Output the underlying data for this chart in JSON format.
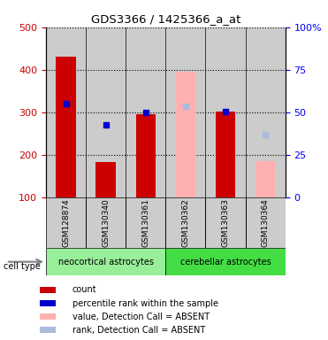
{
  "title": "GDS3366 / 1425366_a_at",
  "samples": [
    "GSM128874",
    "GSM130340",
    "GSM130361",
    "GSM130362",
    "GSM130363",
    "GSM130364"
  ],
  "cell_types": [
    {
      "label": "neocortical astrocytes",
      "color": "#99ee99",
      "start": 0,
      "end": 3
    },
    {
      "label": "cerebellar astrocytes",
      "color": "#44dd44",
      "start": 3,
      "end": 6
    }
  ],
  "count_values": [
    430,
    183,
    296,
    null,
    302,
    null
  ],
  "percentile_values": [
    320,
    270,
    300,
    null,
    302,
    null
  ],
  "count_absent_values": [
    null,
    null,
    null,
    395,
    null,
    185
  ],
  "rank_absent_values": [
    null,
    null,
    null,
    315,
    null,
    247
  ],
  "ylim_left": [
    100,
    500
  ],
  "ylim_right": [
    0,
    100
  ],
  "yticks_left": [
    100,
    200,
    300,
    400,
    500
  ],
  "yticks_right": [
    0,
    25,
    50,
    75,
    100
  ],
  "ytick_labels_right": [
    "0",
    "25",
    "50",
    "75",
    "100%"
  ],
  "red_color": "#cc0000",
  "pink_color": "#ffb0b0",
  "blue_color": "#0000cc",
  "light_blue_color": "#aabbdd",
  "gray_col_color": "#cccccc",
  "bar_width": 0.5,
  "legend_items": [
    {
      "label": "count",
      "color": "#cc0000"
    },
    {
      "label": "percentile rank within the sample",
      "color": "#0000cc"
    },
    {
      "label": "value, Detection Call = ABSENT",
      "color": "#ffb0b0"
    },
    {
      "label": "rank, Detection Call = ABSENT",
      "color": "#aabbdd"
    }
  ]
}
